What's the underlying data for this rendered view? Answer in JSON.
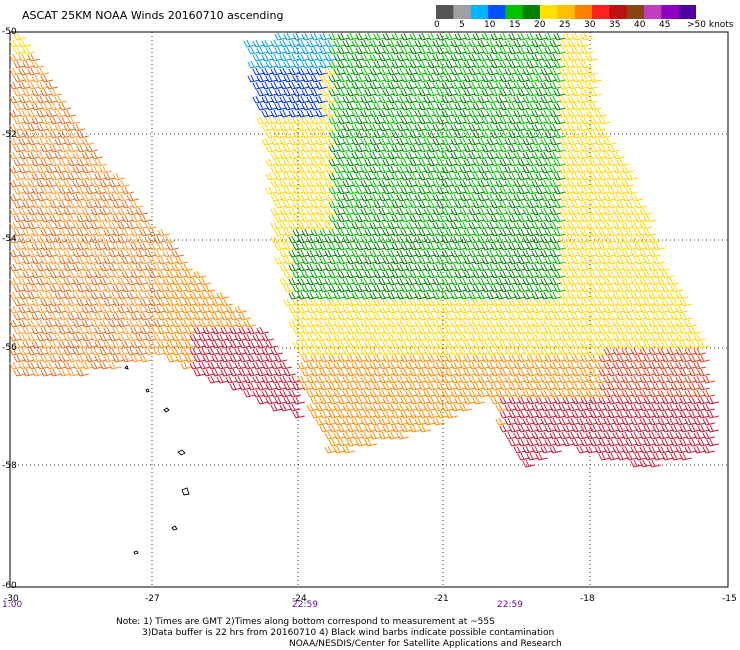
{
  "title": "ASCAT 25KM NOAA Winds 20160710 ascending",
  "colorbar": {
    "labels": [
      "0",
      "5",
      "10",
      "15",
      "20",
      "25",
      "30",
      "35",
      "40",
      "45"
    ],
    "unit": ">50 knots",
    "colors": [
      "#555555",
      "#a0a0a0",
      "#00b7ff",
      "#0050ff",
      "#00c000",
      "#008000",
      "#ffe000",
      "#ffc000",
      "#ff8000",
      "#ff2020",
      "#c01010",
      "#8b4513",
      "#c040c0",
      "#9000c0",
      "#5000a0"
    ]
  },
  "axes": {
    "lat_labels": [
      "-50",
      "-52",
      "-54",
      "-56",
      "-58",
      "-60"
    ],
    "lon_labels": [
      "-30",
      "-27",
      "-24",
      "-21",
      "-18",
      "-15"
    ],
    "lon_range": [
      -30,
      -15
    ],
    "lat_range": [
      -60,
      -50
    ]
  },
  "time_labels": [
    "1:00",
    "22:59",
    "22:59"
  ],
  "notes": [
    "Note: 1) Times are GMT 2)Times along bottom correspond to measurement at ~55S",
    "3)Data buffer is 22 hrs from 20160710 4) Black wind barbs indicate possible contamination",
    "NOAA/NESDIS/Center for Satellite Applications and Research"
  ]
}
